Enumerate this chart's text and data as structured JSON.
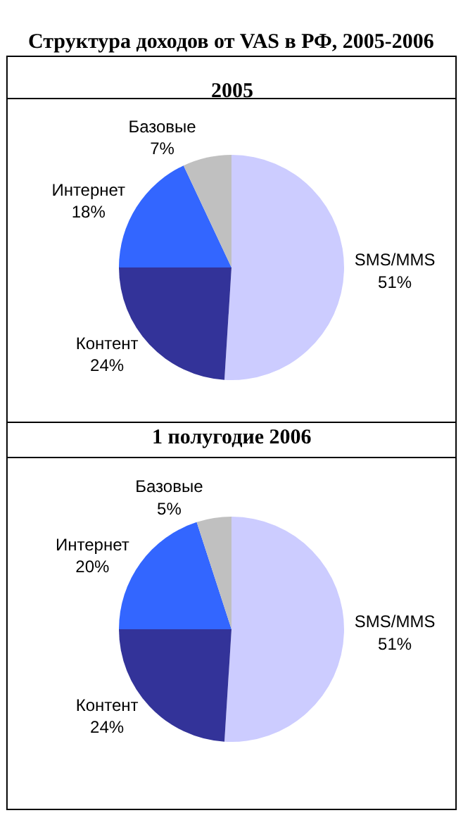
{
  "chart_data": [
    {
      "type": "pie",
      "title": "Структура доходов от VAS в РФ, 2005-2006",
      "subtitle": "2005",
      "categories": [
        "SMS/MMS",
        "Контент",
        "Интернет",
        "Базовые"
      ],
      "values": [
        51,
        24,
        18,
        7
      ],
      "colors": [
        "#ccccff",
        "#333399",
        "#3366ff",
        "#c0c0c0"
      ],
      "value_labels": [
        "51%",
        "24%",
        "18%",
        "7%"
      ]
    },
    {
      "type": "pie",
      "title": "1 полугодие 2006",
      "categories": [
        "SMS/MMS",
        "Контент",
        "Интернет",
        "Базовые"
      ],
      "values": [
        51,
        24,
        20,
        5
      ],
      "colors": [
        "#ccccff",
        "#333399",
        "#3366ff",
        "#c0c0c0"
      ],
      "value_labels": [
        "51%",
        "24%",
        "20%",
        "5%"
      ]
    }
  ]
}
